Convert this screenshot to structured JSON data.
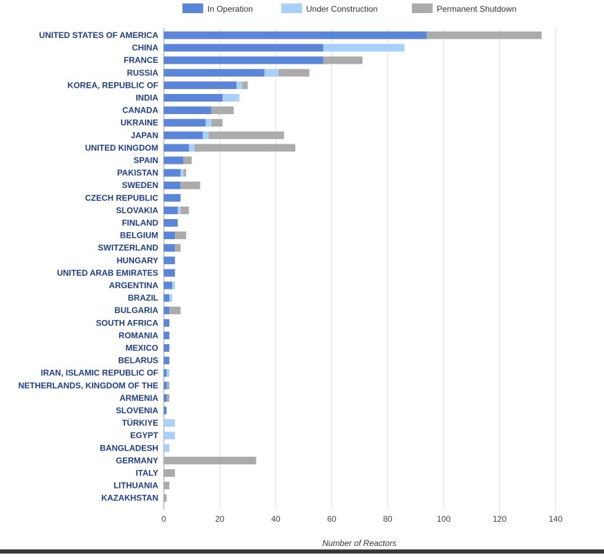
{
  "chart_data": {
    "type": "bar",
    "orientation": "horizontal",
    "stacked": true,
    "legend_position": "top",
    "grid": true,
    "xlabel": "Number of Reactors",
    "xlim": [
      0,
      140
    ],
    "x_ticks": [
      0,
      20,
      40,
      60,
      80,
      100,
      120,
      140
    ],
    "categories": [
      "UNITED STATES OF AMERICA",
      "CHINA",
      "FRANCE",
      "RUSSIA",
      "KOREA, REPUBLIC OF",
      "INDIA",
      "CANADA",
      "UKRAINE",
      "JAPAN",
      "UNITED KINGDOM",
      "SPAIN",
      "PAKISTAN",
      "SWEDEN",
      "CZECH REPUBLIC",
      "SLOVAKIA",
      "FINLAND",
      "BELGIUM",
      "SWITZERLAND",
      "HUNGARY",
      "UNITED ARAB EMIRATES",
      "ARGENTINA",
      "BRAZIL",
      "BULGARIA",
      "SOUTH AFRICA",
      "ROMANIA",
      "MEXICO",
      "BELARUS",
      "IRAN, ISLAMIC REPUBLIC OF",
      "NETHERLANDS, KINGDOM OF THE",
      "ARMENIA",
      "SLOVENIA",
      "TÜRKIYE",
      "EGYPT",
      "BANGLADESH",
      "GERMANY",
      "ITALY",
      "LITHUANIA",
      "KAZAKHSTAN"
    ],
    "series": [
      {
        "name": "In Operation",
        "color": "#5b85d6",
        "values": [
          94,
          57,
          57,
          36,
          26,
          21,
          17,
          15,
          14,
          9,
          7,
          6,
          6,
          6,
          5,
          5,
          4,
          4,
          4,
          4,
          3,
          2,
          2,
          2,
          2,
          2,
          2,
          1,
          1,
          1,
          1,
          0,
          0,
          0,
          0,
          0,
          0,
          0
        ]
      },
      {
        "name": "Under Construction",
        "color": "#a9d0f8",
        "values": [
          0,
          29,
          0,
          5,
          2,
          6,
          0,
          2,
          2,
          2,
          0,
          1,
          0,
          0,
          1,
          0,
          0,
          0,
          0,
          0,
          1,
          1,
          0,
          0,
          0,
          0,
          0,
          1,
          0,
          0,
          0,
          4,
          4,
          2,
          0,
          0,
          0,
          0
        ]
      },
      {
        "name": "Permanent Shutdown",
        "color": "#ababab",
        "values": [
          41,
          0,
          14,
          11,
          2,
          0,
          8,
          4,
          27,
          36,
          3,
          1,
          7,
          0,
          3,
          0,
          4,
          2,
          0,
          0,
          0,
          0,
          4,
          0,
          0,
          0,
          0,
          0,
          1,
          1,
          0,
          0,
          0,
          0,
          33,
          4,
          2,
          1
        ]
      }
    ]
  }
}
